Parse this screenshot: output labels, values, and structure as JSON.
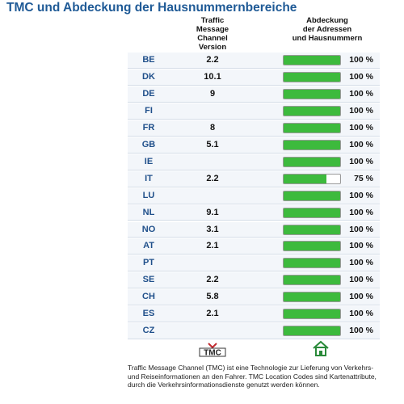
{
  "title": "TMC und Abdeckung der Hausnummernbereiche",
  "columns": [
    [
      "Traffic",
      "Message",
      "Channel Version"
    ],
    [
      "Abdeckung",
      "der Adressen",
      "und Hausnummern"
    ]
  ],
  "xlim": [
    0,
    100
  ],
  "bar_color": "#3dba3d",
  "rows": [
    {
      "country": "BE",
      "tmc": 2.2,
      "coverage": 100,
      "coverage_label": "100 %"
    },
    {
      "country": "DK",
      "tmc": 10.1,
      "coverage": 100,
      "coverage_label": "100 %"
    },
    {
      "country": "DE",
      "tmc": 9,
      "coverage": 100,
      "coverage_label": "100 %"
    },
    {
      "country": "FI",
      "tmc": null,
      "coverage": 100,
      "coverage_label": "100 %"
    },
    {
      "country": "FR",
      "tmc": 8,
      "coverage": 100,
      "coverage_label": "100 %"
    },
    {
      "country": "GB",
      "tmc": 5.1,
      "coverage": 100,
      "coverage_label": "100 %"
    },
    {
      "country": "IE",
      "tmc": null,
      "coverage": 100,
      "coverage_label": "100 %"
    },
    {
      "country": "IT",
      "tmc": 2.2,
      "coverage": 75,
      "coverage_label": "75 %"
    },
    {
      "country": "LU",
      "tmc": null,
      "coverage": 100,
      "coverage_label": "100 %"
    },
    {
      "country": "NL",
      "tmc": 9.1,
      "coverage": 100,
      "coverage_label": "100 %"
    },
    {
      "country": "NO",
      "tmc": 3.1,
      "coverage": 100,
      "coverage_label": "100 %"
    },
    {
      "country": "AT",
      "tmc": 2.1,
      "coverage": 100,
      "coverage_label": "100 %"
    },
    {
      "country": "PT",
      "tmc": null,
      "coverage": 100,
      "coverage_label": "100 %"
    },
    {
      "country": "SE",
      "tmc": 2.2,
      "coverage": 100,
      "coverage_label": "100 %"
    },
    {
      "country": "CH",
      "tmc": 5.8,
      "coverage": 100,
      "coverage_label": "100 %"
    },
    {
      "country": "ES",
      "tmc": 2.1,
      "coverage": 100,
      "coverage_label": "100 %"
    },
    {
      "country": "CZ",
      "tmc": null,
      "coverage": 100,
      "coverage_label": "100 %"
    }
  ],
  "logo": "TMC",
  "footnote": "Traffic Message Channel (TMC) ist eine Technologie zur Lieferung von Verkehrs- und Reiseinformationen an den Fahrer. TMC Location Codes sind Kartenattribute, durch die Verkehrsinformationsdienste genutzt werden können."
}
